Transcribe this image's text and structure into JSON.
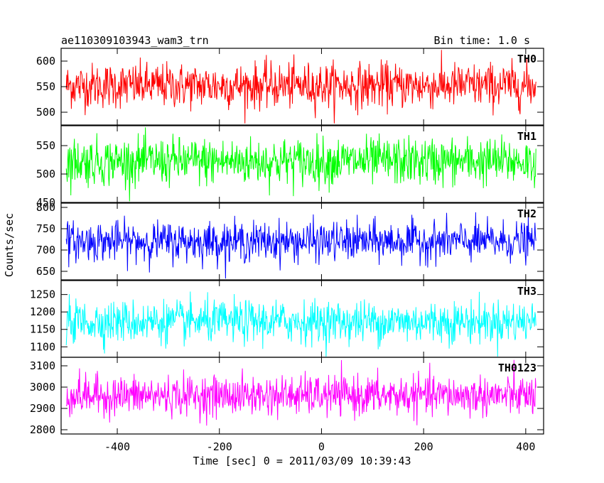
{
  "chart_data": {
    "type": "line",
    "title": "ae110309103943_wam3_trn",
    "subtitle": "Bin time: 1.0 s",
    "xlabel": "Time [sec] 0 = 2011/03/09 10:39:43",
    "ylabel": "Counts/sec",
    "xlim": [
      -510,
      435
    ],
    "xticks": [
      -400,
      -200,
      0,
      200,
      400
    ],
    "x_range": [
      -500,
      420
    ],
    "x_step": 1,
    "legend": "per-panel label at top-right",
    "panels": [
      {
        "name": "TH0",
        "color": "#ff0000",
        "ylim": [
          475,
          625
        ],
        "yticks": [
          500,
          550,
          600
        ],
        "mean": 552,
        "spread": 40,
        "min_value": 478,
        "max_value": 622
      },
      {
        "name": "TH1",
        "color": "#00ff00",
        "ylim": [
          450,
          585
        ],
        "yticks": [
          450,
          500,
          550
        ],
        "mean": 522,
        "spread": 38,
        "min_value": 452,
        "max_value": 582
      },
      {
        "name": "TH2",
        "color": "#0000ff",
        "ylim": [
          630,
          810
        ],
        "yticks": [
          650,
          700,
          750,
          800
        ],
        "mean": 720,
        "spread": 42,
        "min_value": 632,
        "max_value": 808
      },
      {
        "name": "TH3",
        "color": "#00ffff",
        "ylim": [
          1070,
          1290
        ],
        "yticks": [
          1100,
          1150,
          1200,
          1250
        ],
        "mean": 1172,
        "spread": 55,
        "min_value": 1072,
        "max_value": 1288
      },
      {
        "name": "TH0123",
        "color": "#ff00ff",
        "ylim": [
          2780,
          3140
        ],
        "yticks": [
          2800,
          2900,
          3000,
          3100
        ],
        "mean": 2960,
        "spread": 85,
        "min_value": 2782,
        "max_value": 3138
      }
    ]
  }
}
